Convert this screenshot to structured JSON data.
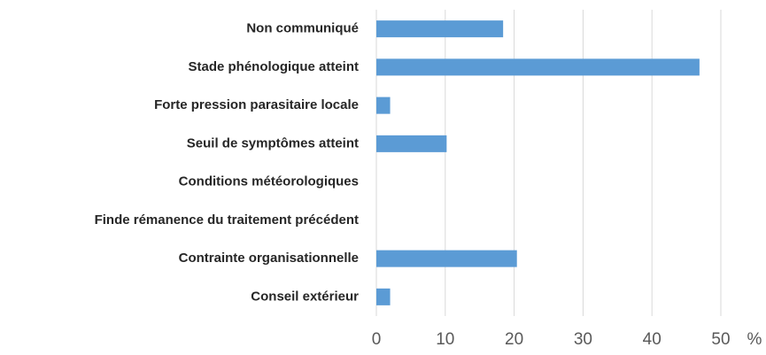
{
  "chart_data": {
    "type": "bar",
    "orientation": "horizontal",
    "categories": [
      "Non communiqué",
      "Stade phénologique atteint",
      "Forte pression parasitaire locale",
      "Seuil de symptômes atteint",
      "Conditions météorologiques",
      "Finde rémanence du traitement précédent",
      "Contrainte organisationnelle",
      "Conseil extérieur"
    ],
    "values": [
      18.4,
      46.9,
      2,
      10.2,
      0,
      0,
      20.4,
      2
    ],
    "color": "#5b9bd5",
    "x_label": "%",
    "xlim": [
      0,
      50
    ],
    "xticks": [
      0,
      10,
      20,
      30,
      40,
      50
    ],
    "grid": true
  }
}
